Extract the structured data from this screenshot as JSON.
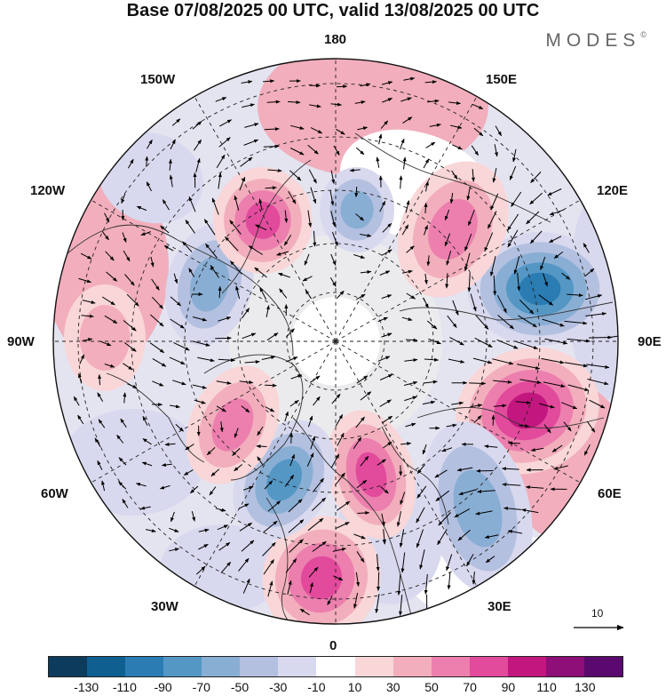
{
  "title": "Base 07/08/2025 00 UTC, valid 13/08/2025 00 UTC",
  "brand": "MODES",
  "brand_mark": "©",
  "map": {
    "projection": "north-polar-stereographic",
    "longitude_labels": {
      "top": "180",
      "bottom": "0",
      "left": "90W",
      "right": "90E",
      "upper_left_1": "150W",
      "upper_left_2": "120W",
      "lower_left_1": "60W",
      "lower_left_2": "30W",
      "upper_right_1": "150E",
      "upper_right_2": "120E",
      "lower_right_1": "60E",
      "lower_right_2": "30E"
    },
    "anomaly_centers": [
      {
        "name": "east-siberia-positive",
        "value": 90
      },
      {
        "name": "kara-negative",
        "value": -90
      },
      {
        "name": "barents-positive",
        "value": 70
      },
      {
        "name": "europe-positive",
        "value": 70
      },
      {
        "name": "greenland-negative",
        "value": -70
      },
      {
        "name": "canada-negative",
        "value": -50
      },
      {
        "name": "alaska-positive",
        "value": 70
      },
      {
        "name": "bering-negative",
        "value": -50
      },
      {
        "name": "chukotka-positive",
        "value": 50
      },
      {
        "name": "siberia-negative",
        "value": -50
      },
      {
        "name": "labrador-positive",
        "value": 50
      },
      {
        "name": "pacific-positive",
        "value": 30
      }
    ]
  },
  "reference_vector": {
    "value": "10"
  },
  "colorbar": {
    "colors": [
      "#0d3b5e",
      "#0f5f91",
      "#2a7cb3",
      "#5497c5",
      "#89aed4",
      "#b4c0e0",
      "#d8d9ee",
      "#ffffff",
      "#f9d6d8",
      "#f2aebc",
      "#ec7fae",
      "#e24a9c",
      "#c2177f",
      "#8e0f78",
      "#5a0a6e"
    ],
    "tick_labels": [
      "-130",
      "-110",
      "-90",
      "-70",
      "-50",
      "-30",
      "-10",
      "10",
      "30",
      "50",
      "70",
      "90",
      "110",
      "130"
    ]
  }
}
